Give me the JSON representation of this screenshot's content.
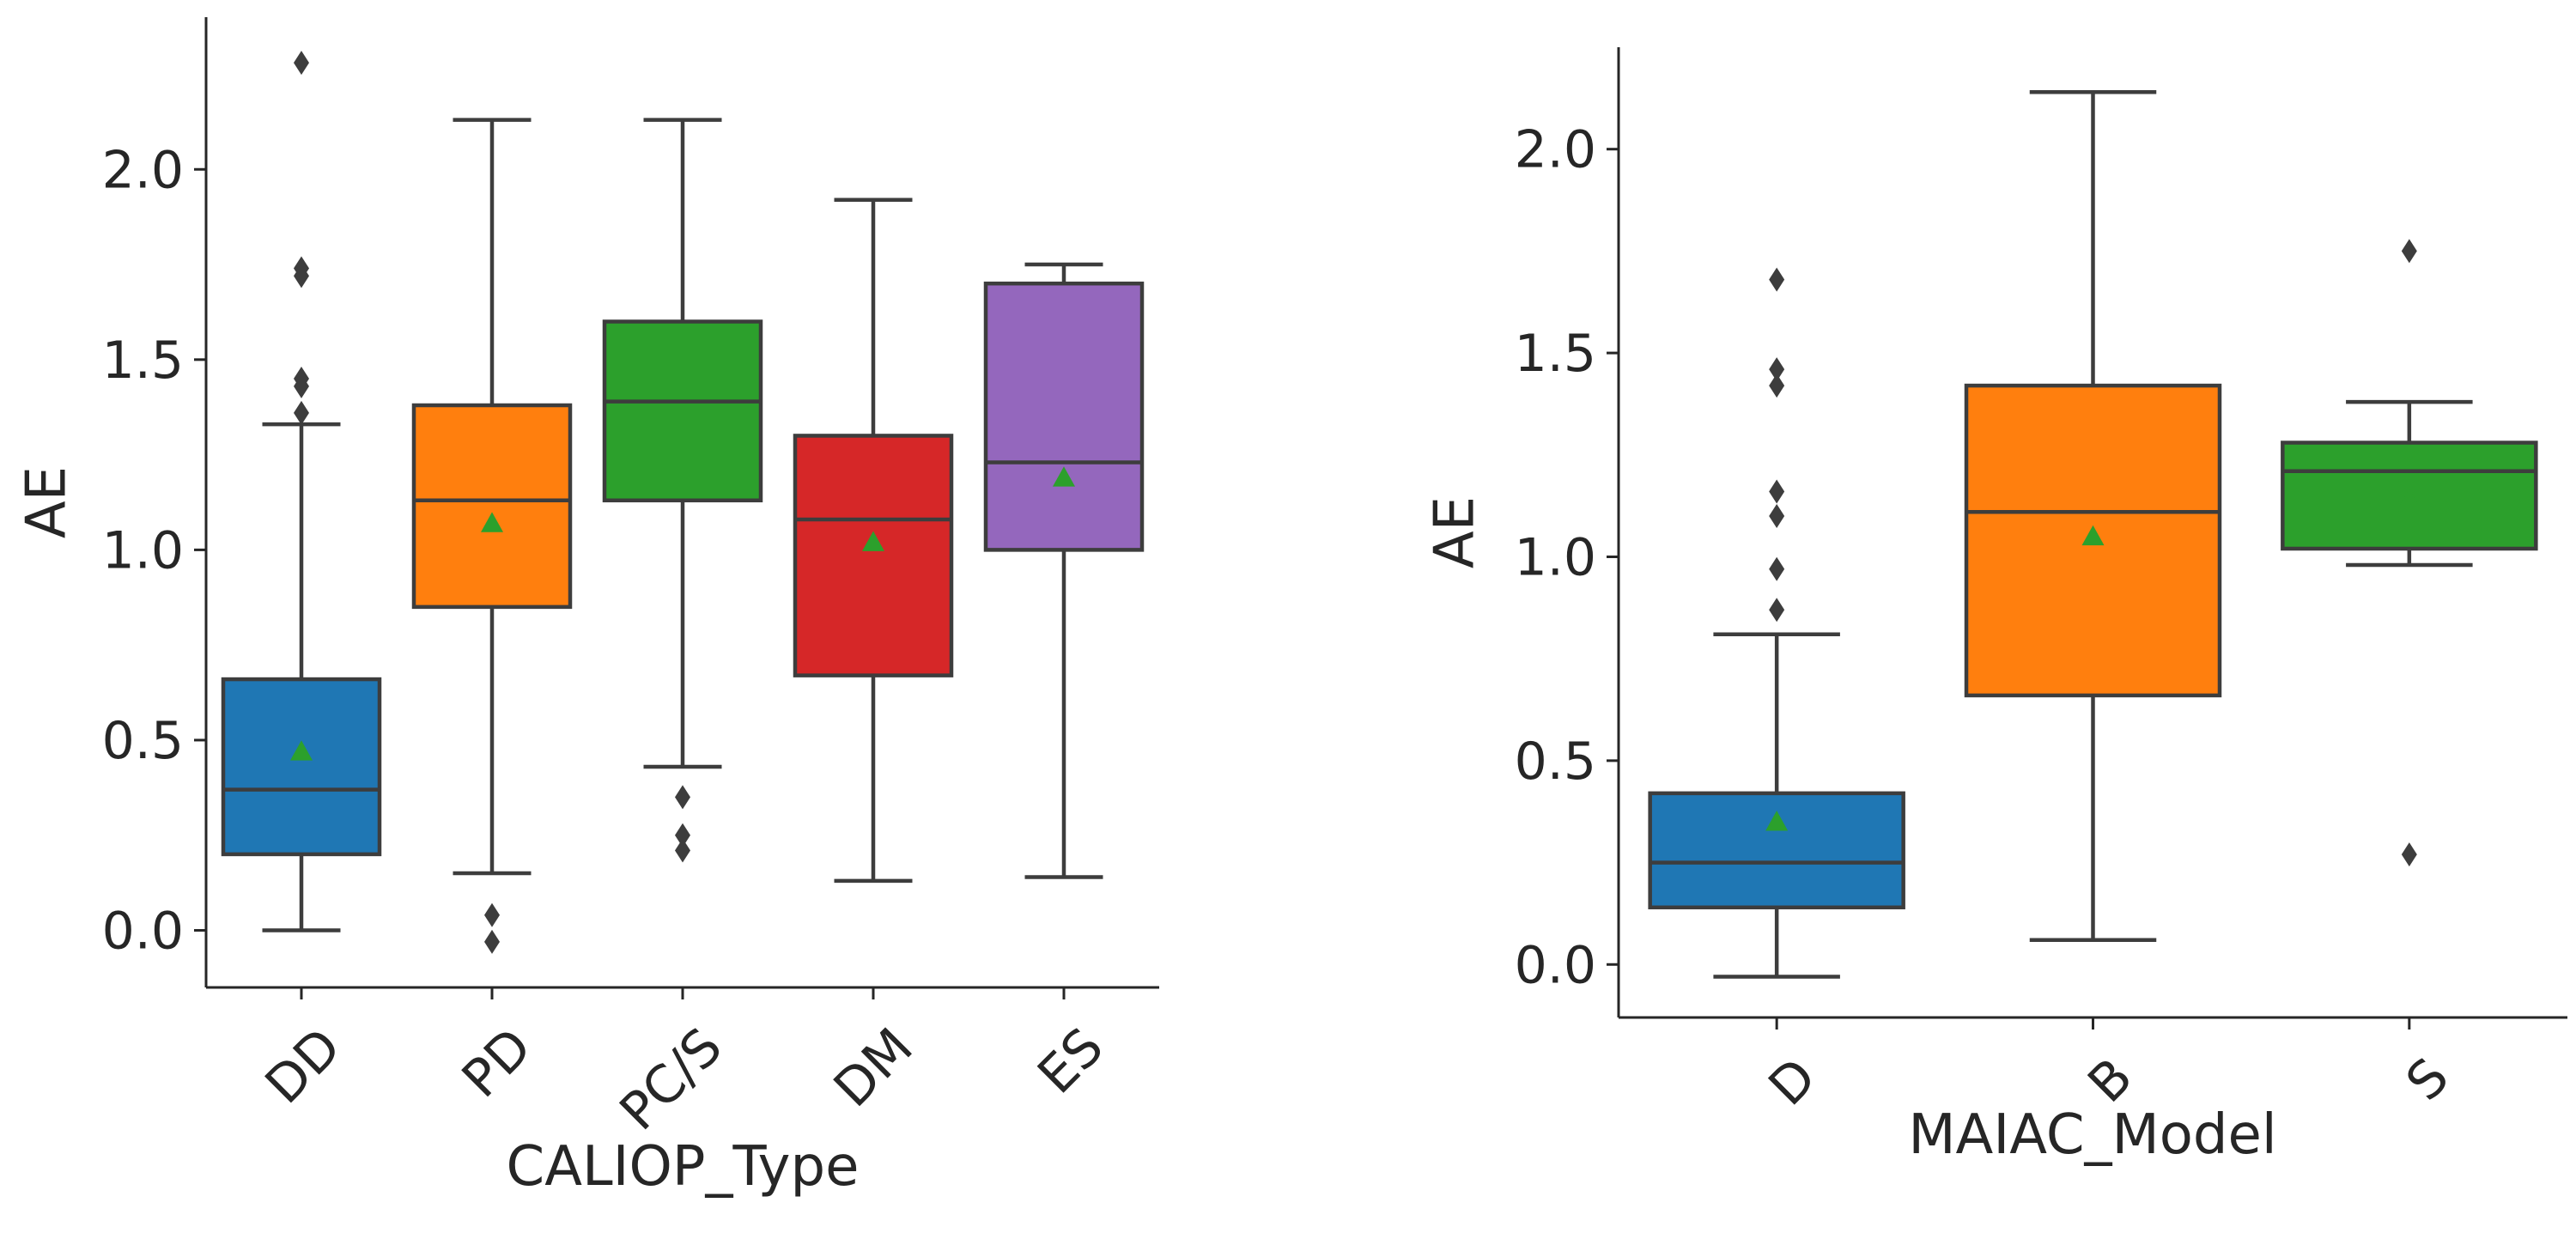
{
  "chart_data": [
    {
      "type": "box",
      "xlabel": "CALIOP_Type",
      "ylabel": "AE",
      "ylim": [
        -0.15,
        2.4
      ],
      "yticks": [
        "0.0",
        "0.5",
        "1.0",
        "1.5",
        "2.0"
      ],
      "categories": [
        {
          "label": "DD",
          "color": "#1f77b4",
          "q1": 0.2,
          "median": 0.37,
          "q3": 0.66,
          "whisker_low": 0.0,
          "whisker_high": 1.33,
          "mean": 0.47,
          "outliers": [
            1.36,
            1.43,
            1.45,
            1.72,
            1.74,
            2.28
          ]
        },
        {
          "label": "PD",
          "color": "#ff7f0e",
          "q1": 0.85,
          "median": 1.13,
          "q3": 1.38,
          "whisker_low": 0.15,
          "whisker_high": 2.13,
          "mean": 1.07,
          "outliers": [
            0.04,
            -0.03
          ]
        },
        {
          "label": "PC/S",
          "color": "#2ca02c",
          "q1": 1.13,
          "median": 1.39,
          "q3": 1.6,
          "whisker_low": 0.43,
          "whisker_high": 2.13,
          "mean": 1.3,
          "outliers": [
            0.35,
            0.25,
            0.21
          ]
        },
        {
          "label": "DM",
          "color": "#d62728",
          "q1": 0.67,
          "median": 1.08,
          "q3": 1.3,
          "whisker_low": 0.13,
          "whisker_high": 1.92,
          "mean": 1.02,
          "outliers": []
        },
        {
          "label": "ES",
          "color": "#9467bd",
          "q1": 1.0,
          "median": 1.23,
          "q3": 1.7,
          "whisker_low": 0.14,
          "whisker_high": 1.75,
          "mean": 1.19,
          "outliers": []
        }
      ]
    },
    {
      "type": "box",
      "xlabel": "MAIAC_Model",
      "ylabel": "AE",
      "ylim": [
        -0.13,
        2.25
      ],
      "yticks": [
        "0.0",
        "0.5",
        "1.0",
        "1.5",
        "2.0"
      ],
      "categories": [
        {
          "label": "D",
          "color": "#1f77b4",
          "q1": 0.14,
          "median": 0.25,
          "q3": 0.42,
          "whisker_low": -0.03,
          "whisker_high": 0.81,
          "mean": 0.35,
          "outliers": [
            0.87,
            0.97,
            1.1,
            1.16,
            1.42,
            1.46,
            1.68
          ]
        },
        {
          "label": "B",
          "color": "#ff7f0e",
          "q1": 0.66,
          "median": 1.11,
          "q3": 1.42,
          "whisker_low": 0.06,
          "whisker_high": 2.14,
          "mean": 1.05,
          "outliers": []
        },
        {
          "label": "S",
          "color": "#2ca02c",
          "q1": 1.02,
          "median": 1.21,
          "q3": 1.28,
          "whisker_low": 0.98,
          "whisker_high": 1.38,
          "mean": 1.14,
          "outliers": [
            0.27,
            1.75
          ]
        }
      ]
    }
  ]
}
